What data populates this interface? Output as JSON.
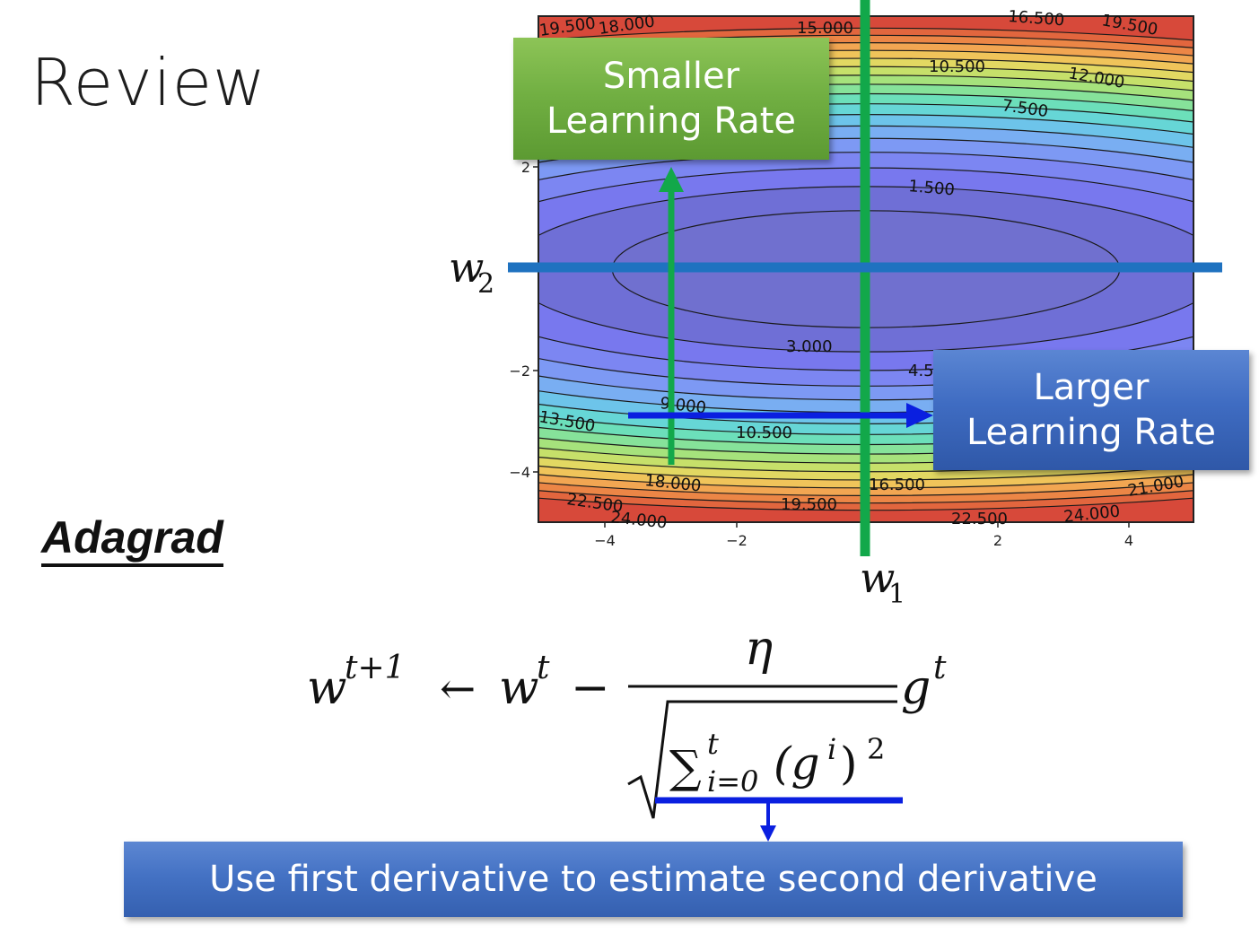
{
  "slide": {
    "title": "Review",
    "section_label": "Adagrad"
  },
  "contour_plot": {
    "x_ticks": [
      "−4",
      "−2",
      "2",
      "4"
    ],
    "y_ticks": [
      "2",
      "−2",
      "−4"
    ],
    "x_range": [
      -5,
      5
    ],
    "y_range": [
      -5.3,
      5.3
    ],
    "levels": [
      1.5,
      3.0,
      4.5,
      6.0,
      7.5,
      9.0,
      10.5,
      12.0,
      13.5,
      15.0,
      16.5,
      18.0,
      19.5,
      21.0,
      22.5,
      24.0,
      25.5
    ],
    "contour_labels": [
      "19.500",
      "18.000",
      "15.000",
      "16.500",
      "19.500",
      "10.500",
      "12.000",
      "7.500",
      "1.500",
      "3.000",
      "4.5",
      "13.500",
      "9.000",
      "10.500",
      "18.000",
      "22.500",
      "24.000",
      "19.500",
      "16.500",
      "21.000",
      "22.500",
      "24.000"
    ],
    "axis_label_x": "w",
    "axis_label_x_sub": "1",
    "axis_label_y": "w",
    "axis_label_y_sub": "2",
    "colors": {
      "line_w1": "#12a84a",
      "line_w2": "#1f72c0",
      "arrow_green": "#12a84a",
      "arrow_blue": "#0a1fe0"
    }
  },
  "callouts": {
    "smaller": {
      "line1": "Smaller",
      "line2": "Learning Rate"
    },
    "larger": {
      "line1": "Larger",
      "line2": "Learning Rate"
    }
  },
  "formula": {
    "lhs": "w",
    "lhs_sup": "t+1",
    "arrow": "←",
    "w": "w",
    "w_sup": "t",
    "minus": "−",
    "eta": "η",
    "sigma": "∑",
    "sum_upper": "t",
    "sum_lower": "i=0",
    "g_open": "(g",
    "g_sup": "i",
    "g_close": ")",
    "square": "2",
    "g": "g",
    "g_sup_t": "t"
  },
  "banner": {
    "text": "Use first derivative to estimate second derivative"
  }
}
